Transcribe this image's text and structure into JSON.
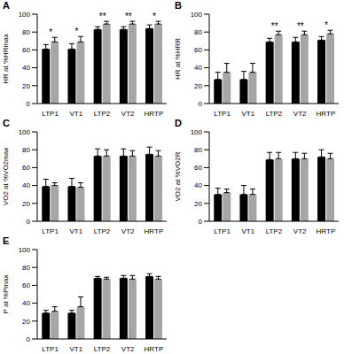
{
  "chart_data": [
    {
      "type": "bar",
      "title": "A",
      "y_label": "HR at %HRmax",
      "categories": [
        "LTP1",
        "VT1",
        "LTP2",
        "VT2",
        "HRTP"
      ],
      "ylim": [
        0,
        100
      ],
      "yticks": [
        0,
        20,
        40,
        60,
        80,
        100
      ],
      "annotations": [
        "*",
        "*",
        "**",
        "**",
        "*"
      ],
      "series": [
        {
          "color": "#000000",
          "values": [
            61,
            61,
            83,
            83,
            84
          ],
          "errors": [
            5,
            6,
            3,
            3,
            4
          ]
        },
        {
          "color": "#a6a6a6",
          "values": [
            69,
            69,
            89,
            89,
            89
          ],
          "errors": [
            5,
            6,
            3,
            3,
            3
          ]
        }
      ]
    },
    {
      "type": "bar",
      "title": "B",
      "y_label": "HR at %HRR",
      "categories": [
        "LTP1",
        "VT1",
        "LTP2",
        "VT2",
        "HRTP"
      ],
      "ylim": [
        0,
        100
      ],
      "yticks": [
        0,
        20,
        40,
        60,
        80,
        100
      ],
      "annotations": [
        null,
        null,
        "**",
        "**",
        "*"
      ],
      "series": [
        {
          "color": "#000000",
          "values": [
            27,
            27,
            69,
            69,
            71
          ],
          "errors": [
            8,
            9,
            4,
            5,
            4
          ]
        },
        {
          "color": "#a6a6a6",
          "values": [
            35,
            35,
            77,
            77,
            78
          ],
          "errors": [
            10,
            10,
            4,
            4,
            4
          ]
        }
      ]
    },
    {
      "type": "bar",
      "title": "C",
      "y_label": "VO2 at %VO2max",
      "categories": [
        "LTP1",
        "VT1",
        "LTP2",
        "VT2",
        "HRTP"
      ],
      "ylim": [
        0,
        100
      ],
      "yticks": [
        0,
        20,
        40,
        60,
        80,
        100
      ],
      "annotations": [
        null,
        null,
        null,
        null,
        null
      ],
      "series": [
        {
          "color": "#000000",
          "values": [
            39,
            39,
            73,
            73,
            75
          ],
          "errors": [
            8,
            9,
            8,
            8,
            8
          ]
        },
        {
          "color": "#a6a6a6",
          "values": [
            40,
            38,
            73,
            73,
            73
          ],
          "errors": [
            3,
            5,
            7,
            6,
            6
          ]
        }
      ]
    },
    {
      "type": "bar",
      "title": "D",
      "y_label": "VO2 at %VO2R",
      "categories": [
        "LTP1",
        "VT1",
        "LTP2",
        "VT2",
        "HRTP"
      ],
      "ylim": [
        0,
        100
      ],
      "yticks": [
        0,
        20,
        40,
        60,
        80,
        100
      ],
      "annotations": [
        null,
        null,
        null,
        null,
        null
      ],
      "series": [
        {
          "color": "#000000",
          "values": [
            30,
            30,
            69,
            70,
            72
          ],
          "errors": [
            7,
            10,
            8,
            7,
            8
          ]
        },
        {
          "color": "#a6a6a6",
          "values": [
            32,
            30,
            70,
            70,
            70
          ],
          "errors": [
            4,
            6,
            7,
            6,
            6
          ]
        }
      ]
    },
    {
      "type": "bar",
      "title": "E",
      "y_label": "P at %Pmax",
      "categories": [
        "LTP1",
        "VT1",
        "LTP2",
        "VT2",
        "HRTP"
      ],
      "ylim": [
        0,
        100
      ],
      "yticks": [
        0,
        20,
        40,
        60,
        80,
        100
      ],
      "annotations": [
        null,
        null,
        null,
        null,
        null
      ],
      "series": [
        {
          "color": "#000000",
          "values": [
            29,
            29,
            68,
            68,
            70
          ],
          "errors": [
            3,
            3,
            2,
            3,
            3
          ]
        },
        {
          "color": "#a6a6a6",
          "values": [
            31,
            36,
            67,
            67,
            67
          ],
          "errors": [
            5,
            11,
            2,
            4,
            3
          ]
        }
      ]
    }
  ]
}
